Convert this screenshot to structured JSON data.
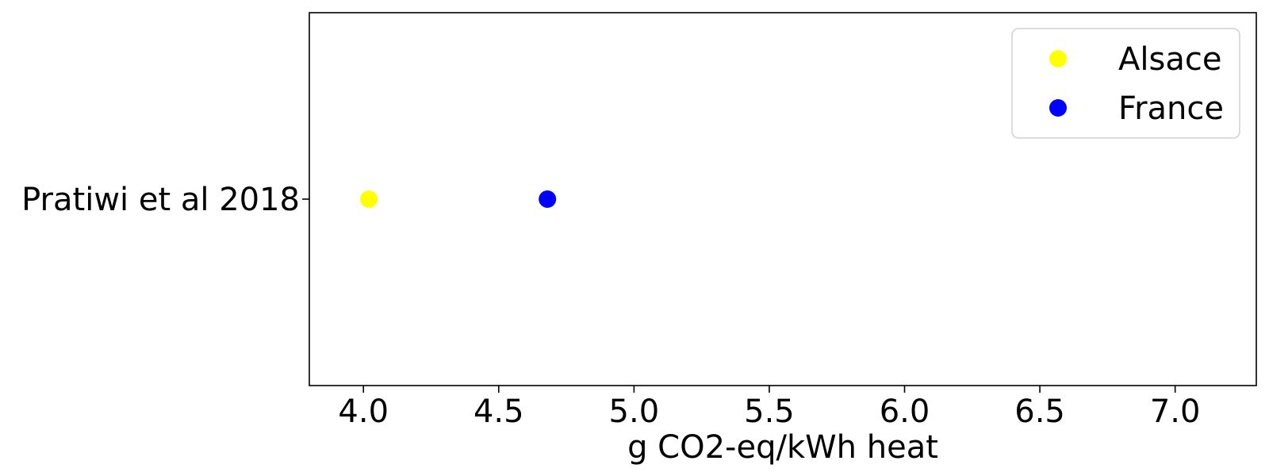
{
  "chart_data": {
    "type": "scatter",
    "title": "",
    "xlabel": "g CO2-eq/kWh heat",
    "ylabel": "",
    "xlim": [
      3.8,
      7.3
    ],
    "x_ticks": [
      4.0,
      4.5,
      5.0,
      5.5,
      6.0,
      6.5,
      7.0
    ],
    "x_tick_labels": [
      "4.0",
      "4.5",
      "5.0",
      "5.5",
      "6.0",
      "6.5",
      "7.0"
    ],
    "categories": [
      "Pratiwi et al 2018"
    ],
    "grid": false,
    "legend_position": "top-right",
    "series": [
      {
        "name": "Alsace",
        "color": "#ffff00",
        "points": [
          {
            "category": "Pratiwi et al 2018",
            "x": 4.02
          }
        ]
      },
      {
        "name": "France",
        "color": "#0000ff",
        "points": [
          {
            "category": "Pratiwi et al 2018",
            "x": 4.68
          }
        ]
      }
    ]
  }
}
